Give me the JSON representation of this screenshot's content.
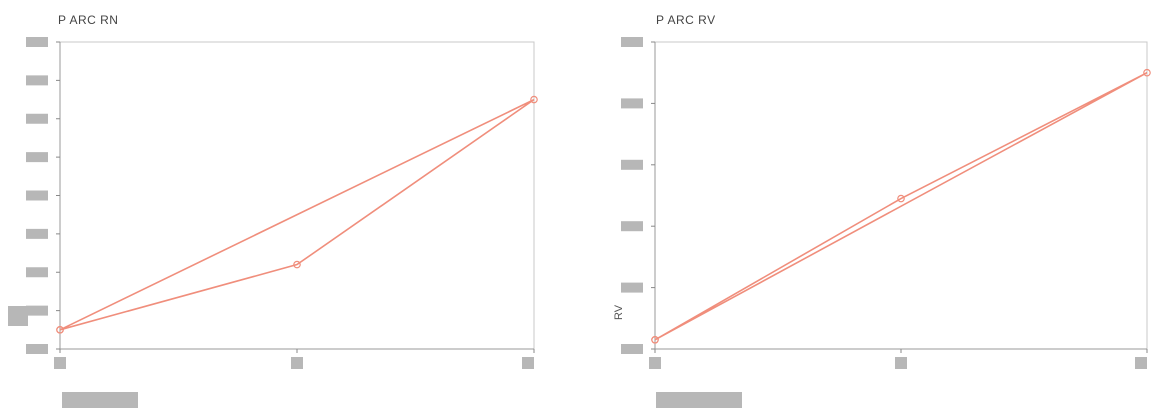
{
  "chart_data": [
    {
      "type": "line",
      "title": "P ARC RN",
      "xlabel": "",
      "ylabel": "",
      "xlim": [
        0,
        2
      ],
      "ylim": [
        0,
        8
      ],
      "yticks": [
        0,
        1,
        2,
        3,
        4,
        5,
        6,
        7,
        8
      ],
      "xticks": [
        0,
        1,
        2
      ],
      "series": [
        {
          "x": [
            0,
            1,
            2,
            0
          ],
          "y": [
            0.5,
            2.2,
            6.5,
            0.5
          ]
        }
      ],
      "color": "#f08e7c",
      "grid": false
    },
    {
      "type": "line",
      "title": "P ARC RV",
      "xlabel": "",
      "ylabel": "RV",
      "xlim": [
        0,
        2
      ],
      "ylim": [
        0,
        5
      ],
      "yticks": [
        0,
        1,
        2,
        3,
        4,
        5
      ],
      "xticks": [
        0,
        1,
        2
      ],
      "series": [
        {
          "x": [
            0,
            1,
            2,
            0
          ],
          "y": [
            0.15,
            2.45,
            4.5,
            0.15
          ]
        }
      ],
      "color": "#f08e7c",
      "grid": false
    }
  ]
}
